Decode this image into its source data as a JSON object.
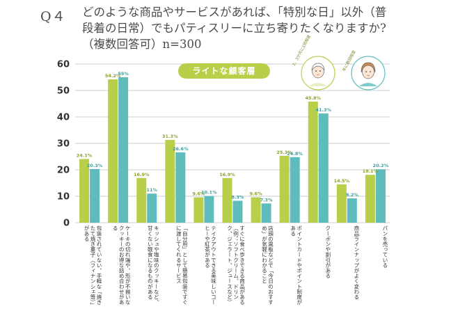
{
  "header": {
    "question_number": "Q４",
    "title_lines": [
      "どのような商品やサービスがあれば、「特別な日」以外（普",
      "段着の日常）でもパティスリーに立ち寄りたくなりますか?",
      "（複数回答可）n=300"
    ]
  },
  "legend": {
    "segment_label": "ライトな顧客層",
    "persona_1": "2、3か月に1回程度",
    "persona_2": "年に数回程度",
    "color_1": "#b8cf4a",
    "color_2": "#5fbcbc"
  },
  "chart_data": {
    "type": "bar",
    "ylim": [
      0,
      60
    ],
    "yticks": [
      "0",
      "10",
      "20",
      "30",
      "40",
      "50",
      "60"
    ],
    "categories": [
      "包装されていない、手軽な「焼きたて焼き菓子（フィナンシェ等）」がある",
      "ケーキの切れ端や、形が不揃いなクッキーのお得な詰め合わせがある",
      "キッシュや塩味のクッキーなど、甘くない軽食になるものがある",
      "「自分用」として簡易包装ですぐに渡してくれるサービス",
      "テイクアウトできる美味しいコーヒーや紅茶がある",
      "すぐに食べ歩きできる商品がある（例：ソフトクリーム、ドリンク、ジェラート、ジュースなど）",
      "店頭の黒板などで「今日のおすすめ」が気軽にわかること",
      "ポイントカードやポイント制度がある",
      "クーポンや割引がある",
      "商品ラインナップがよく変わる",
      "パンを売っている"
    ],
    "series": [
      {
        "name": "2、3か月に1回程度",
        "values": [
          24.1,
          54.2,
          16.9,
          31.3,
          9.6,
          16.9,
          9.6,
          25.3,
          45.8,
          14.5,
          18.1
        ]
      },
      {
        "name": "年に数回程度",
        "values": [
          20.3,
          55,
          11,
          26.6,
          10.1,
          8.3,
          7.3,
          24.8,
          41.3,
          9.2,
          20.2
        ]
      }
    ],
    "data_labels_1": [
      "24.1%",
      "54.2%",
      "16.9%",
      "31.3%",
      "9.6%",
      "16.9%",
      "9.6%",
      "25.3%",
      "45.8%",
      "14.5%",
      "18.1%"
    ],
    "data_labels_2": [
      "20.3%",
      "55%",
      "11%",
      "26.6%",
      "10.1%",
      "8.3%",
      "7.3%",
      "24.8%",
      "41.3%",
      "9.2%",
      "20.2%"
    ]
  }
}
